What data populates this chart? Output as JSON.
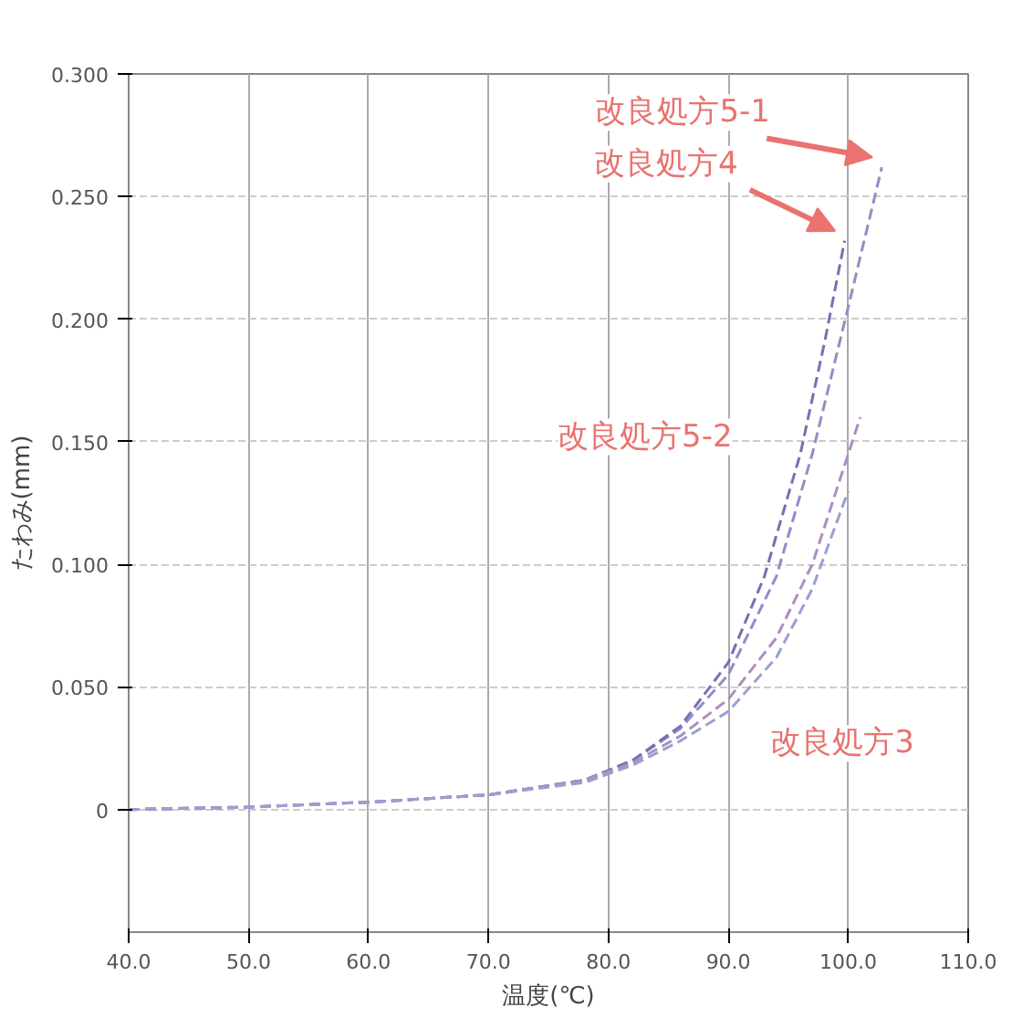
{
  "chart_data": {
    "type": "line",
    "xlabel": "温度(℃)",
    "ylabel": "たわみ(mm)",
    "xlim": [
      40,
      110
    ],
    "ylim": [
      -0.05,
      0.3
    ],
    "xticks": [
      {
        "value": 40,
        "label": "40.0"
      },
      {
        "value": 50,
        "label": "50.0"
      },
      {
        "value": 60,
        "label": "60.0"
      },
      {
        "value": 70,
        "label": "70.0"
      },
      {
        "value": 80,
        "label": "80.0"
      },
      {
        "value": 90,
        "label": "90.0"
      },
      {
        "value": 100,
        "label": "100.0"
      },
      {
        "value": 110,
        "label": "110.0"
      }
    ],
    "yticks": [
      0,
      {
        "value": 0.05,
        "label": "0.050"
      },
      {
        "value": 0.1,
        "label": "0.100"
      },
      {
        "value": 0.15,
        "label": "0.150"
      },
      {
        "value": 0.2,
        "label": "0.200"
      },
      {
        "value": 0.25,
        "label": "0.250"
      },
      {
        "value": 0.3,
        "label": "0.300"
      }
    ],
    "grid": true,
    "line_style": "dashed",
    "marker": "none",
    "series": [
      {
        "color": "#8c90c8",
        "x": [
          40,
          50,
          60,
          70,
          78,
          82,
          86,
          90,
          94,
          97,
          100,
          102.8
        ],
        "values": [
          0,
          0.001,
          0.003,
          0.006,
          0.012,
          0.02,
          0.033,
          0.055,
          0.095,
          0.145,
          0.205,
          0.262
        ]
      },
      {
        "color": "#7a6fb0",
        "x": [
          40,
          50,
          60,
          70,
          78,
          82,
          86,
          90,
          93,
          96,
          98,
          99.7
        ],
        "values": [
          0,
          0.001,
          0.003,
          0.006,
          0.012,
          0.02,
          0.034,
          0.06,
          0.095,
          0.145,
          0.19,
          0.232
        ]
      },
      {
        "color": "#b08cc0",
        "x": [
          40,
          50,
          60,
          70,
          78,
          82,
          86,
          90,
          94,
          97,
          99,
          101
        ],
        "values": [
          0,
          0.001,
          0.003,
          0.006,
          0.012,
          0.019,
          0.03,
          0.045,
          0.07,
          0.1,
          0.13,
          0.16
        ]
      },
      {
        "color": "#9aa0d0",
        "x": [
          40,
          50,
          60,
          70,
          78,
          82,
          86,
          90,
          94,
          97,
          100
        ],
        "values": [
          0,
          0.001,
          0.003,
          0.006,
          0.011,
          0.018,
          0.028,
          0.04,
          0.062,
          0.09,
          0.13
        ]
      }
    ],
    "annotations": [
      "改良処方5-1",
      "改良処方4",
      "改良処方5-2",
      "改良処方3"
    ]
  }
}
